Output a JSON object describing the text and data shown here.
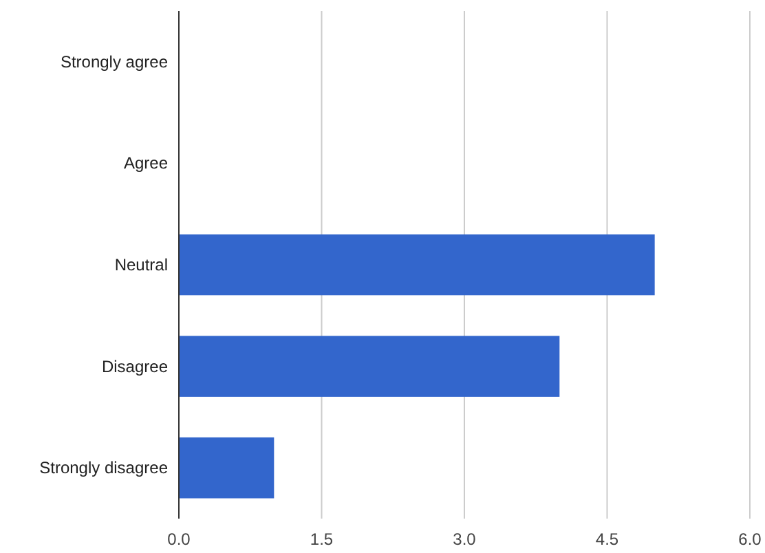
{
  "chart_data": {
    "type": "bar",
    "orientation": "horizontal",
    "categories": [
      "Strongly agree",
      "Agree",
      "Neutral",
      "Disagree",
      "Strongly disagree"
    ],
    "values": [
      0,
      0,
      5,
      4,
      1
    ],
    "color": "#3366cc",
    "xlim": [
      0,
      6
    ],
    "xticks": [
      {
        "value": 0,
        "label": "0.0"
      },
      {
        "value": 1.5,
        "label": "1.5"
      },
      {
        "value": 3,
        "label": "3.0"
      },
      {
        "value": 4.5,
        "label": "4.5"
      },
      {
        "value": 6,
        "label": "6.0"
      }
    ],
    "grid": "x"
  }
}
